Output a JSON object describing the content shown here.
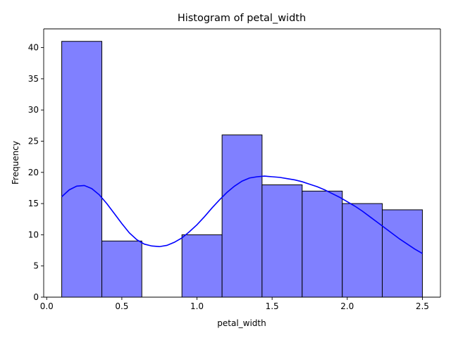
{
  "chart_data": {
    "type": "bar",
    "title": "Histogram of petal_width",
    "xlabel": "petal_width",
    "ylabel": "Frequency",
    "xlim": [
      -0.02,
      2.62
    ],
    "ylim": [
      0,
      43
    ],
    "xticks": [
      0.0,
      0.5,
      1.0,
      1.5,
      2.0,
      2.5
    ],
    "xtick_labels": [
      "0.0",
      "0.5",
      "1.0",
      "1.5",
      "2.0",
      "2.5"
    ],
    "yticks": [
      0,
      5,
      10,
      15,
      20,
      25,
      30,
      35,
      40
    ],
    "ytick_labels": [
      "0",
      "5",
      "10",
      "15",
      "20",
      "25",
      "30",
      "35",
      "40"
    ],
    "grid": false,
    "bar_color": "#8080ff",
    "bar_edge_color": "#000000",
    "bins": [
      {
        "x0": 0.1,
        "x1": 0.367,
        "count": 41
      },
      {
        "x0": 0.367,
        "x1": 0.633,
        "count": 9
      },
      {
        "x0": 0.633,
        "x1": 0.9,
        "count": 0
      },
      {
        "x0": 0.9,
        "x1": 1.167,
        "count": 10
      },
      {
        "x0": 1.167,
        "x1": 1.433,
        "count": 26
      },
      {
        "x0": 1.433,
        "x1": 1.7,
        "count": 18
      },
      {
        "x0": 1.7,
        "x1": 1.967,
        "count": 17
      },
      {
        "x0": 1.967,
        "x1": 2.233,
        "count": 15
      },
      {
        "x0": 2.233,
        "x1": 2.5,
        "count": 14
      }
    ],
    "kde": {
      "color": "#0000ff",
      "x": [
        0.1,
        0.15,
        0.2,
        0.25,
        0.3,
        0.35,
        0.4,
        0.45,
        0.5,
        0.55,
        0.6,
        0.65,
        0.7,
        0.75,
        0.8,
        0.85,
        0.9,
        0.95,
        1.0,
        1.05,
        1.1,
        1.15,
        1.2,
        1.25,
        1.3,
        1.35,
        1.4,
        1.45,
        1.5,
        1.55,
        1.6,
        1.65,
        1.7,
        1.75,
        1.8,
        1.85,
        1.9,
        1.95,
        2.0,
        2.05,
        2.1,
        2.15,
        2.2,
        2.25,
        2.3,
        2.35,
        2.4,
        2.45,
        2.5
      ],
      "y": [
        16.1,
        17.2,
        17.8,
        17.9,
        17.4,
        16.4,
        15.0,
        13.4,
        11.8,
        10.3,
        9.2,
        8.5,
        8.2,
        8.1,
        8.3,
        8.8,
        9.5,
        10.5,
        11.6,
        12.9,
        14.3,
        15.6,
        16.8,
        17.8,
        18.6,
        19.1,
        19.3,
        19.4,
        19.3,
        19.2,
        19.0,
        18.8,
        18.5,
        18.1,
        17.7,
        17.2,
        16.6,
        16.0,
        15.3,
        14.6,
        13.8,
        12.9,
        12.0,
        11.1,
        10.2,
        9.3,
        8.5,
        7.7,
        7.0
      ]
    }
  }
}
